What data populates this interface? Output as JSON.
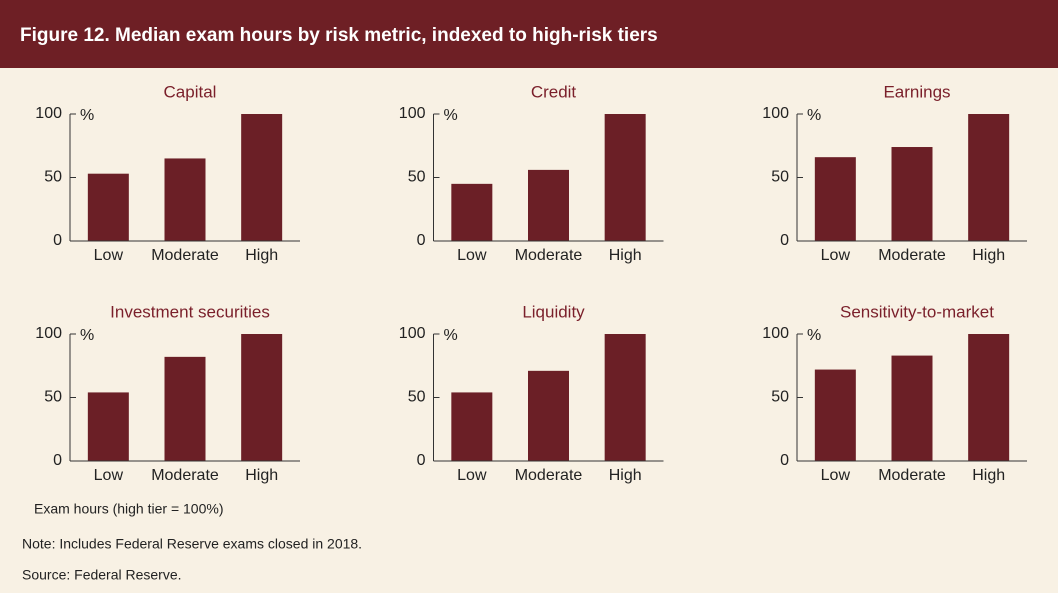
{
  "header": {
    "title": "Figure 12. Median exam hours by risk metric, indexed to high-risk tiers"
  },
  "chart_data": [
    {
      "type": "bar",
      "title": "Capital",
      "ylabel": "%",
      "categories": [
        "Low",
        "Moderate",
        "High"
      ],
      "values": [
        53,
        65,
        100
      ],
      "color": "#6b1f26",
      "ylim": [
        0,
        100
      ],
      "yticks": [
        0,
        50,
        100
      ]
    },
    {
      "type": "bar",
      "title": "Credit",
      "ylabel": "%",
      "categories": [
        "Low",
        "Moderate",
        "High"
      ],
      "values": [
        45,
        56,
        100
      ],
      "color": "#6b1f26",
      "ylim": [
        0,
        100
      ],
      "yticks": [
        0,
        50,
        100
      ]
    },
    {
      "type": "bar",
      "title": "Earnings",
      "ylabel": "%",
      "categories": [
        "Low",
        "Moderate",
        "High"
      ],
      "values": [
        66,
        74,
        100
      ],
      "color": "#6b1f26",
      "ylim": [
        0,
        100
      ],
      "yticks": [
        0,
        50,
        100
      ]
    },
    {
      "type": "bar",
      "title": "Investment securities",
      "ylabel": "%",
      "categories": [
        "Low",
        "Moderate",
        "High"
      ],
      "values": [
        54,
        82,
        100
      ],
      "color": "#6b1f26",
      "ylim": [
        0,
        100
      ],
      "yticks": [
        0,
        50,
        100
      ]
    },
    {
      "type": "bar",
      "title": "Liquidity",
      "ylabel": "%",
      "categories": [
        "Low",
        "Moderate",
        "High"
      ],
      "values": [
        54,
        71,
        100
      ],
      "color": "#6b1f26",
      "ylim": [
        0,
        100
      ],
      "yticks": [
        0,
        50,
        100
      ]
    },
    {
      "type": "bar",
      "title": "Sensitivity-to-market",
      "ylabel": "%",
      "categories": [
        "Low",
        "Moderate",
        "High"
      ],
      "values": [
        72,
        83,
        100
      ],
      "color": "#6b1f26",
      "ylim": [
        0,
        100
      ],
      "yticks": [
        0,
        50,
        100
      ]
    }
  ],
  "footer": {
    "axis_note": "Exam hours (high tier = 100%)",
    "note": "Note: Includes Federal Reserve exams closed in 2018.",
    "source": "Source: Federal Reserve."
  }
}
